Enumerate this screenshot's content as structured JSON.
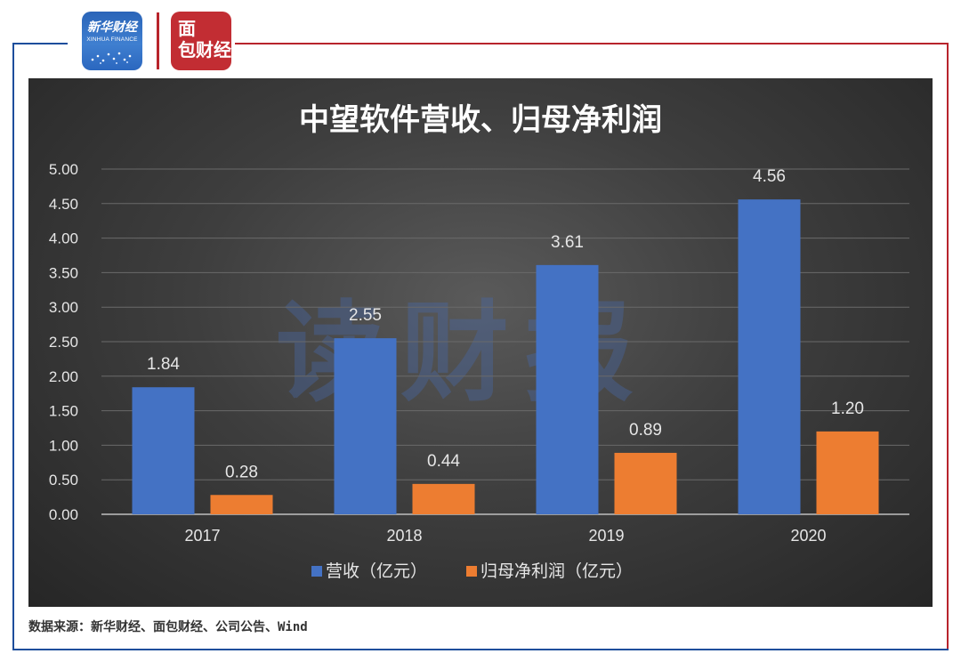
{
  "logos": {
    "xinhua_cn": "新华财经",
    "xinhua_en": "XINHUA FINANCE",
    "mianbao_line1": "面",
    "mianbao_line2": "包财经"
  },
  "watermark": "读财报",
  "source_note": "数据来源：新华财经、面包财经、公司公告、Wind",
  "colors": {
    "frame_blue": "#1e4e9c",
    "frame_red": "#b8242c",
    "series_revenue": "#4472c4",
    "series_profit": "#ed7d31"
  },
  "chart_data": {
    "type": "bar",
    "title": "中望软件营收、归母净利润",
    "categories": [
      "2017",
      "2018",
      "2019",
      "2020"
    ],
    "series": [
      {
        "name": "营收（亿元）",
        "values": [
          1.84,
          2.55,
          3.61,
          4.56
        ]
      },
      {
        "name": "归母净利润（亿元）",
        "values": [
          0.28,
          0.44,
          0.89,
          1.2
        ]
      }
    ],
    "ylim": [
      0,
      5
    ],
    "yticks": [
      "0.00",
      "0.50",
      "1.00",
      "1.50",
      "2.00",
      "2.50",
      "3.00",
      "3.50",
      "4.00",
      "4.50",
      "5.00"
    ],
    "grid": true,
    "legend": "bottom",
    "data_labels": true
  }
}
